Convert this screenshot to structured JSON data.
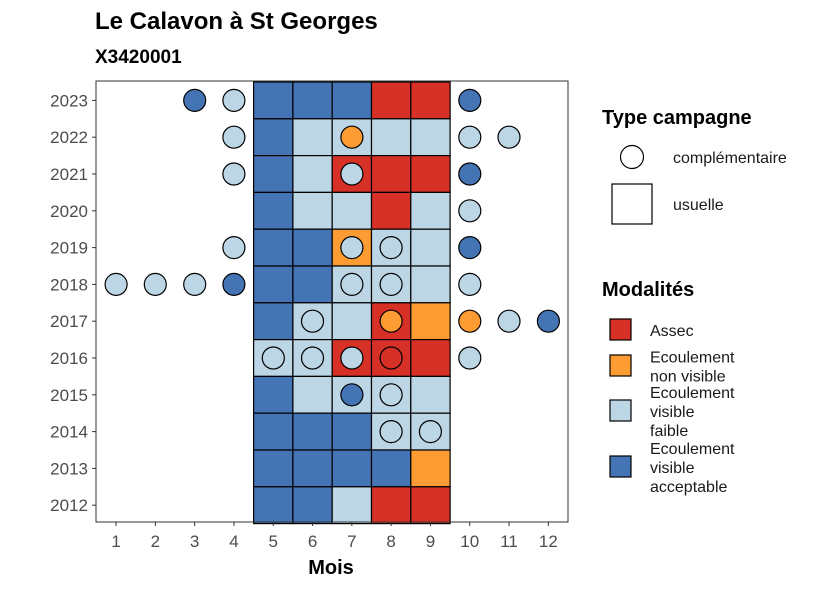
{
  "chart_data": {
    "type": "heatmap",
    "title": "Le Calavon à St Georges",
    "subtitle": "X3420001",
    "xlabel": "Mois",
    "ylabel": "",
    "x_categories": [
      "1",
      "2",
      "3",
      "4",
      "5",
      "6",
      "7",
      "8",
      "9",
      "10",
      "11",
      "12"
    ],
    "y_categories": [
      "2012",
      "2013",
      "2014",
      "2015",
      "2016",
      "2017",
      "2018",
      "2019",
      "2020",
      "2021",
      "2022",
      "2023"
    ],
    "colors": {
      "assec": "#d73027",
      "ecoulement_non_visible": "#fd9c32",
      "ecoulement_visible_faible": "#bcd6e6",
      "ecoulement_visible_acceptable": "#4574b4"
    },
    "legend_type": {
      "title": "Type campagne",
      "items": [
        {
          "key": "complementaire",
          "label": "complémentaire",
          "shape": "circle"
        },
        {
          "key": "usuelle",
          "label": "usuelle",
          "shape": "square"
        }
      ]
    },
    "legend_modalites": {
      "title": "Modalités",
      "items": [
        {
          "key": "assec",
          "lines": [
            "Assec"
          ]
        },
        {
          "key": "ecoulement_non_visible",
          "lines": [
            "Ecoulement",
            "non visible"
          ]
        },
        {
          "key": "ecoulement_visible_faible",
          "lines": [
            "Ecoulement",
            "visible",
            "faible"
          ]
        },
        {
          "key": "ecoulement_visible_acceptable",
          "lines": [
            "Ecoulement",
            "visible",
            "acceptable"
          ]
        }
      ]
    },
    "usuelle": [
      {
        "year": "2023",
        "month": 5,
        "modalite": "ecoulement_visible_acceptable"
      },
      {
        "year": "2023",
        "month": 6,
        "modalite": "ecoulement_visible_acceptable"
      },
      {
        "year": "2023",
        "month": 7,
        "modalite": "ecoulement_visible_acceptable"
      },
      {
        "year": "2023",
        "month": 8,
        "modalite": "assec"
      },
      {
        "year": "2023",
        "month": 9,
        "modalite": "assec"
      },
      {
        "year": "2022",
        "month": 5,
        "modalite": "ecoulement_visible_acceptable"
      },
      {
        "year": "2022",
        "month": 6,
        "modalite": "ecoulement_visible_faible"
      },
      {
        "year": "2022",
        "month": 7,
        "modalite": "ecoulement_visible_faible"
      },
      {
        "year": "2022",
        "month": 8,
        "modalite": "ecoulement_visible_faible"
      },
      {
        "year": "2022",
        "month": 9,
        "modalite": "ecoulement_visible_faible"
      },
      {
        "year": "2021",
        "month": 5,
        "modalite": "ecoulement_visible_acceptable"
      },
      {
        "year": "2021",
        "month": 6,
        "modalite": "ecoulement_visible_faible"
      },
      {
        "year": "2021",
        "month": 7,
        "modalite": "assec"
      },
      {
        "year": "2021",
        "month": 8,
        "modalite": "assec"
      },
      {
        "year": "2021",
        "month": 9,
        "modalite": "assec"
      },
      {
        "year": "2020",
        "month": 5,
        "modalite": "ecoulement_visible_acceptable"
      },
      {
        "year": "2020",
        "month": 6,
        "modalite": "ecoulement_visible_faible"
      },
      {
        "year": "2020",
        "month": 7,
        "modalite": "ecoulement_visible_faible"
      },
      {
        "year": "2020",
        "month": 8,
        "modalite": "assec"
      },
      {
        "year": "2020",
        "month": 9,
        "modalite": "ecoulement_visible_faible"
      },
      {
        "year": "2019",
        "month": 5,
        "modalite": "ecoulement_visible_acceptable"
      },
      {
        "year": "2019",
        "month": 6,
        "modalite": "ecoulement_visible_acceptable"
      },
      {
        "year": "2019",
        "month": 7,
        "modalite": "ecoulement_non_visible"
      },
      {
        "year": "2019",
        "month": 8,
        "modalite": "ecoulement_visible_faible"
      },
      {
        "year": "2019",
        "month": 9,
        "modalite": "ecoulement_visible_faible"
      },
      {
        "year": "2018",
        "month": 5,
        "modalite": "ecoulement_visible_acceptable"
      },
      {
        "year": "2018",
        "month": 6,
        "modalite": "ecoulement_visible_acceptable"
      },
      {
        "year": "2018",
        "month": 7,
        "modalite": "ecoulement_visible_faible"
      },
      {
        "year": "2018",
        "month": 8,
        "modalite": "ecoulement_visible_faible"
      },
      {
        "year": "2018",
        "month": 9,
        "modalite": "ecoulement_visible_faible"
      },
      {
        "year": "2017",
        "month": 5,
        "modalite": "ecoulement_visible_acceptable"
      },
      {
        "year": "2017",
        "month": 6,
        "modalite": "ecoulement_visible_faible"
      },
      {
        "year": "2017",
        "month": 7,
        "modalite": "ecoulement_visible_faible"
      },
      {
        "year": "2017",
        "month": 8,
        "modalite": "assec"
      },
      {
        "year": "2017",
        "month": 9,
        "modalite": "ecoulement_non_visible"
      },
      {
        "year": "2016",
        "month": 5,
        "modalite": "ecoulement_visible_faible"
      },
      {
        "year": "2016",
        "month": 6,
        "modalite": "ecoulement_visible_faible"
      },
      {
        "year": "2016",
        "month": 7,
        "modalite": "assec"
      },
      {
        "year": "2016",
        "month": 8,
        "modalite": "assec"
      },
      {
        "year": "2016",
        "month": 9,
        "modalite": "assec"
      },
      {
        "year": "2015",
        "month": 5,
        "modalite": "ecoulement_visible_acceptable"
      },
      {
        "year": "2015",
        "month": 6,
        "modalite": "ecoulement_visible_faible"
      },
      {
        "year": "2015",
        "month": 7,
        "modalite": "ecoulement_visible_faible"
      },
      {
        "year": "2015",
        "month": 8,
        "modalite": "ecoulement_visible_faible"
      },
      {
        "year": "2015",
        "month": 9,
        "modalite": "ecoulement_visible_faible"
      },
      {
        "year": "2014",
        "month": 5,
        "modalite": "ecoulement_visible_acceptable"
      },
      {
        "year": "2014",
        "month": 6,
        "modalite": "ecoulement_visible_acceptable"
      },
      {
        "year": "2014",
        "month": 7,
        "modalite": "ecoulement_visible_acceptable"
      },
      {
        "year": "2014",
        "month": 8,
        "modalite": "ecoulement_visible_faible"
      },
      {
        "year": "2014",
        "month": 9,
        "modalite": "ecoulement_visible_faible"
      },
      {
        "year": "2013",
        "month": 5,
        "modalite": "ecoulement_visible_acceptable"
      },
      {
        "year": "2013",
        "month": 6,
        "modalite": "ecoulement_visible_acceptable"
      },
      {
        "year": "2013",
        "month": 7,
        "modalite": "ecoulement_visible_acceptable"
      },
      {
        "year": "2013",
        "month": 8,
        "modalite": "ecoulement_visible_acceptable"
      },
      {
        "year": "2013",
        "month": 9,
        "modalite": "ecoulement_non_visible"
      },
      {
        "year": "2012",
        "month": 5,
        "modalite": "ecoulement_visible_acceptable"
      },
      {
        "year": "2012",
        "month": 6,
        "modalite": "ecoulement_visible_acceptable"
      },
      {
        "year": "2012",
        "month": 7,
        "modalite": "ecoulement_visible_faible"
      },
      {
        "year": "2012",
        "month": 8,
        "modalite": "assec"
      },
      {
        "year": "2012",
        "month": 9,
        "modalite": "assec"
      }
    ],
    "complementaire": [
      {
        "year": "2023",
        "month": 3,
        "modalite": "ecoulement_visible_acceptable"
      },
      {
        "year": "2023",
        "month": 4,
        "modalite": "ecoulement_visible_faible"
      },
      {
        "year": "2023",
        "month": 10,
        "modalite": "ecoulement_visible_acceptable"
      },
      {
        "year": "2022",
        "month": 4,
        "modalite": "ecoulement_visible_faible"
      },
      {
        "year": "2022",
        "month": 7,
        "modalite": "ecoulement_non_visible"
      },
      {
        "year": "2022",
        "month": 10,
        "modalite": "ecoulement_visible_faible"
      },
      {
        "year": "2022",
        "month": 11,
        "modalite": "ecoulement_visible_faible"
      },
      {
        "year": "2021",
        "month": 4,
        "modalite": "ecoulement_visible_faible"
      },
      {
        "year": "2021",
        "month": 7,
        "modalite": "ecoulement_visible_faible"
      },
      {
        "year": "2021",
        "month": 10,
        "modalite": "ecoulement_visible_acceptable"
      },
      {
        "year": "2020",
        "month": 10,
        "modalite": "ecoulement_visible_faible"
      },
      {
        "year": "2019",
        "month": 4,
        "modalite": "ecoulement_visible_faible"
      },
      {
        "year": "2019",
        "month": 7,
        "modalite": "ecoulement_visible_faible"
      },
      {
        "year": "2019",
        "month": 8,
        "modalite": "ecoulement_visible_faible"
      },
      {
        "year": "2019",
        "month": 10,
        "modalite": "ecoulement_visible_acceptable"
      },
      {
        "year": "2018",
        "month": 1,
        "modalite": "ecoulement_visible_faible"
      },
      {
        "year": "2018",
        "month": 2,
        "modalite": "ecoulement_visible_faible"
      },
      {
        "year": "2018",
        "month": 3,
        "modalite": "ecoulement_visible_faible"
      },
      {
        "year": "2018",
        "month": 4,
        "modalite": "ecoulement_visible_acceptable"
      },
      {
        "year": "2018",
        "month": 7,
        "modalite": "ecoulement_visible_faible"
      },
      {
        "year": "2018",
        "month": 8,
        "modalite": "ecoulement_visible_faible"
      },
      {
        "year": "2018",
        "month": 10,
        "modalite": "ecoulement_visible_faible"
      },
      {
        "year": "2017",
        "month": 6,
        "modalite": "ecoulement_visible_faible"
      },
      {
        "year": "2017",
        "month": 8,
        "modalite": "ecoulement_non_visible"
      },
      {
        "year": "2017",
        "month": 10,
        "modalite": "ecoulement_non_visible"
      },
      {
        "year": "2017",
        "month": 11,
        "modalite": "ecoulement_visible_faible"
      },
      {
        "year": "2017",
        "month": 12,
        "modalite": "ecoulement_visible_acceptable"
      },
      {
        "year": "2016",
        "month": 5,
        "modalite": "ecoulement_visible_faible"
      },
      {
        "year": "2016",
        "month": 6,
        "modalite": "ecoulement_visible_faible"
      },
      {
        "year": "2016",
        "month": 7,
        "modalite": "ecoulement_visible_faible"
      },
      {
        "year": "2016",
        "month": 8,
        "modalite": "assec"
      },
      {
        "year": "2016",
        "month": 10,
        "modalite": "ecoulement_visible_faible"
      },
      {
        "year": "2015",
        "month": 7,
        "modalite": "ecoulement_visible_acceptable"
      },
      {
        "year": "2015",
        "month": 8,
        "modalite": "ecoulement_visible_faible"
      },
      {
        "year": "2014",
        "month": 8,
        "modalite": "ecoulement_visible_faible"
      },
      {
        "year": "2014",
        "month": 9,
        "modalite": "ecoulement_visible_faible"
      }
    ]
  }
}
